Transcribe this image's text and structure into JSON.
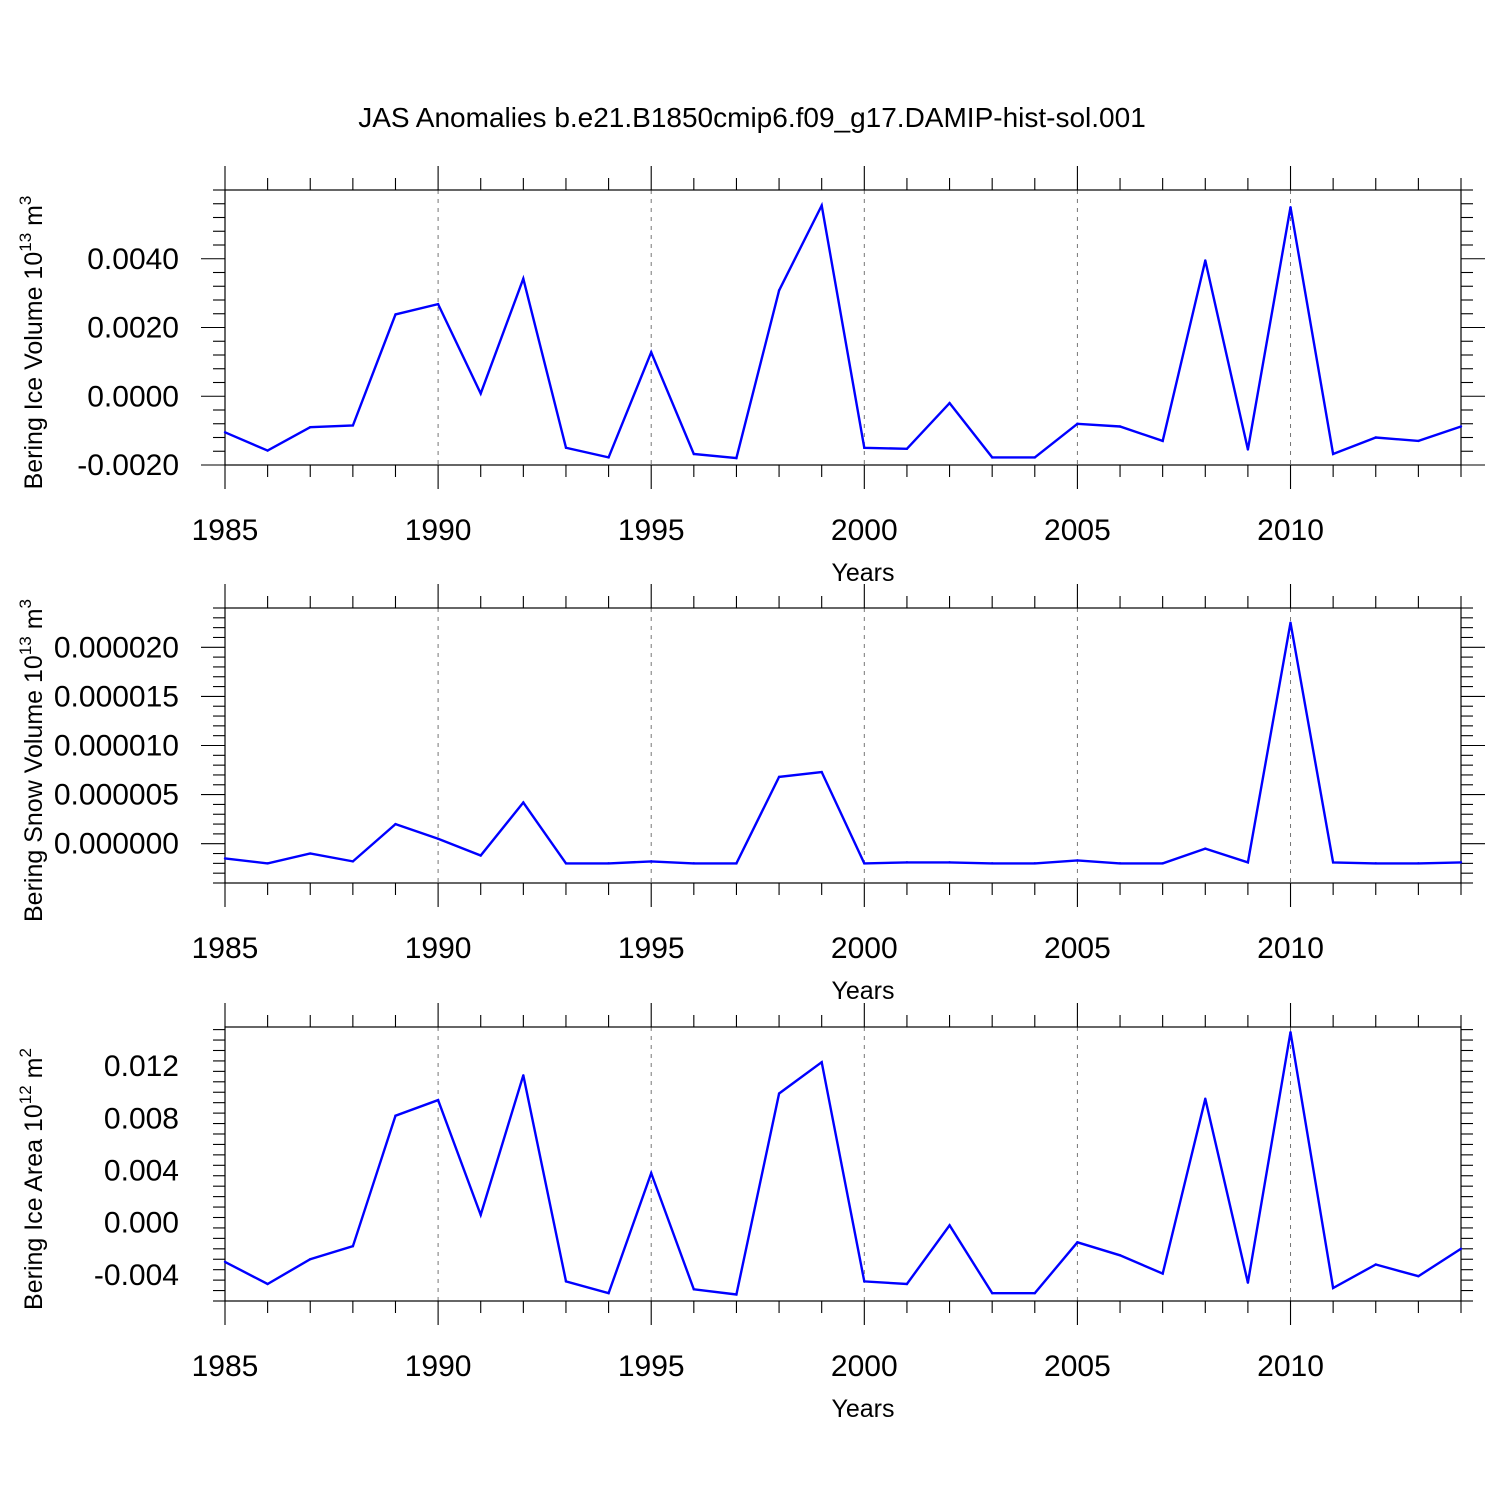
{
  "figure_title": "JAS Anomalies b.e21.B1850cmip6.f09_g17.DAMIP-hist-sol.001",
  "colors": {
    "line": "#0000ff",
    "axis": "#000000",
    "grid": "#777777"
  },
  "chart_data": [
    {
      "type": "line",
      "ylabel_main": "Bering Ice Volume 10",
      "ylabel_exp": "13",
      "ylabel_unit": " m",
      "ylabel_unit_exp": "3",
      "xlabel": "Years",
      "xlim": [
        1985,
        2014
      ],
      "ylim": [
        -0.002,
        0.006
      ],
      "xticks": [
        1985,
        1990,
        1995,
        2000,
        2005,
        2010
      ],
      "xtick_labels": [
        "1985",
        "1990",
        "1995",
        "2000",
        "2005",
        "2010"
      ],
      "yticks": [
        -0.002,
        0.0,
        0.002,
        0.004
      ],
      "ytick_labels": [
        "-0.0020",
        "0.0000",
        "0.0020",
        "0.0040"
      ],
      "x": [
        1985,
        1986,
        1987,
        1988,
        1989,
        1990,
        1991,
        1992,
        1993,
        1994,
        1995,
        1996,
        1997,
        1998,
        1999,
        2000,
        2001,
        2002,
        2003,
        2004,
        2005,
        2006,
        2007,
        2008,
        2009,
        2010,
        2011,
        2012,
        2013,
        2014
      ],
      "values": [
        -0.00105,
        -0.00158,
        -0.0009,
        -0.00085,
        0.00238,
        0.00268,
        8e-05,
        0.00342,
        -0.0015,
        -0.00178,
        0.00128,
        -0.00168,
        -0.0018,
        0.00308,
        0.00555,
        -0.0015,
        -0.00153,
        -0.0002,
        -0.00178,
        -0.00178,
        -0.0008,
        -0.00088,
        -0.0013,
        0.00395,
        -0.00155,
        0.0055,
        -0.00168,
        -0.0012,
        -0.0013,
        -0.00088
      ]
    },
    {
      "type": "line",
      "ylabel_main": "Bering Snow Volume 10",
      "ylabel_exp": "13",
      "ylabel_unit": " m",
      "ylabel_unit_exp": "3",
      "xlabel": "Years",
      "xlim": [
        1985,
        2014
      ],
      "ylim": [
        -4e-06,
        2.4e-05
      ],
      "xticks": [
        1985,
        1990,
        1995,
        2000,
        2005,
        2010
      ],
      "xtick_labels": [
        "1985",
        "1990",
        "1995",
        "2000",
        "2005",
        "2010"
      ],
      "yticks": [
        0.0,
        5e-06,
        1e-05,
        1.5e-05,
        2e-05
      ],
      "ytick_labels": [
        "0.000000",
        "0.000005",
        "0.000010",
        "0.000015",
        "0.000020"
      ],
      "x": [
        1985,
        1986,
        1987,
        1988,
        1989,
        1990,
        1991,
        1992,
        1993,
        1994,
        1995,
        1996,
        1997,
        1998,
        1999,
        2000,
        2001,
        2002,
        2003,
        2004,
        2005,
        2006,
        2007,
        2008,
        2009,
        2010,
        2011,
        2012,
        2013,
        2014
      ],
      "values": [
        -1.5e-06,
        -2e-06,
        -1e-06,
        -1.8e-06,
        2e-06,
        5e-07,
        -1.2e-06,
        4.2e-06,
        -2e-06,
        -2e-06,
        -1.8e-06,
        -2e-06,
        -2e-06,
        6.8e-06,
        7.3e-06,
        -2e-06,
        -1.9e-06,
        -1.9e-06,
        -2e-06,
        -2e-06,
        -1.7e-06,
        -2e-06,
        -2e-06,
        -5e-07,
        -1.9e-06,
        2.25e-05,
        -1.9e-06,
        -2e-06,
        -2e-06,
        -1.9e-06
      ]
    },
    {
      "type": "line",
      "ylabel_main": "Bering Ice Area 10",
      "ylabel_exp": "12",
      "ylabel_unit": " m",
      "ylabel_unit_exp": "2",
      "xlabel": "Years",
      "xlim": [
        1985,
        2014
      ],
      "ylim": [
        -0.006,
        0.015
      ],
      "xticks": [
        1985,
        1990,
        1995,
        2000,
        2005,
        2010
      ],
      "xtick_labels": [
        "1985",
        "1990",
        "1995",
        "2000",
        "2005",
        "2010"
      ],
      "yticks": [
        -0.004,
        0.0,
        0.004,
        0.008,
        0.012
      ],
      "ytick_labels": [
        "-0.004",
        "0.000",
        "0.004",
        "0.008",
        "0.012"
      ],
      "x": [
        1985,
        1986,
        1987,
        1988,
        1989,
        1990,
        1991,
        1992,
        1993,
        1994,
        1995,
        1996,
        1997,
        1998,
        1999,
        2000,
        2001,
        2002,
        2003,
        2004,
        2005,
        2006,
        2007,
        2008,
        2009,
        2010,
        2011,
        2012,
        2013,
        2014
      ],
      "values": [
        -0.003,
        -0.0047,
        -0.0028,
        -0.0018,
        0.0082,
        0.0094,
        0.0006,
        0.0113,
        -0.0045,
        -0.0054,
        0.0038,
        -0.0051,
        -0.0055,
        0.0099,
        0.0123,
        -0.0045,
        -0.0047,
        -0.0002,
        -0.0054,
        -0.0054,
        -0.0015,
        -0.0025,
        -0.0039,
        0.0095,
        -0.0046,
        0.0146,
        -0.005,
        -0.0032,
        -0.0041,
        -0.002
      ]
    }
  ]
}
